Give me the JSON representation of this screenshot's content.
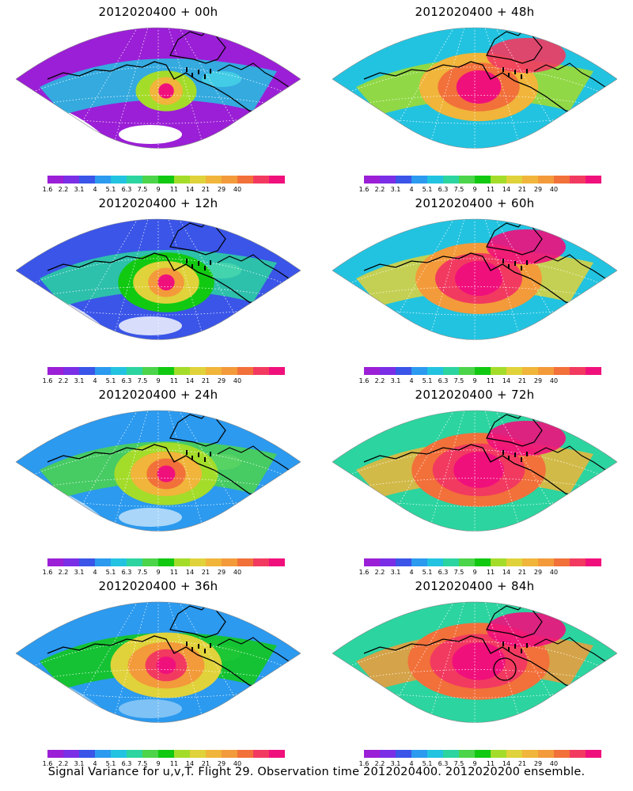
{
  "panels": [
    {
      "title": "2012020400 + 00h",
      "level": 0
    },
    {
      "title": "2012020400 + 48h",
      "level": 4
    },
    {
      "title": "2012020400 + 12h",
      "level": 1
    },
    {
      "title": "2012020400 + 60h",
      "level": 5
    },
    {
      "title": "2012020400 + 24h",
      "level": 2
    },
    {
      "title": "2012020400 + 72h",
      "level": 6
    },
    {
      "title": "2012020400 + 36h",
      "level": 3
    },
    {
      "title": "2012020400 + 84h",
      "level": 7
    }
  ],
  "colorbar": {
    "labels": [
      "1.6",
      "2.2",
      "3.1",
      "4",
      "5.1",
      "6.3",
      "7.5",
      "9",
      "11",
      "14",
      "21",
      "29",
      "40"
    ],
    "colors": [
      "#9b1fd6",
      "#7a2ee6",
      "#3a55e8",
      "#2b9aef",
      "#22c3e0",
      "#2cd4a0",
      "#4cd44a",
      "#12c912",
      "#a4dc2a",
      "#e0d23a",
      "#f0b53a",
      "#f39a3a",
      "#f2703a",
      "#f23a60",
      "#f0107c"
    ]
  },
  "footer": "Signal Variance for u,v,T. Flight 29. Observation time 2012020400. 2012020200 ensemble."
}
